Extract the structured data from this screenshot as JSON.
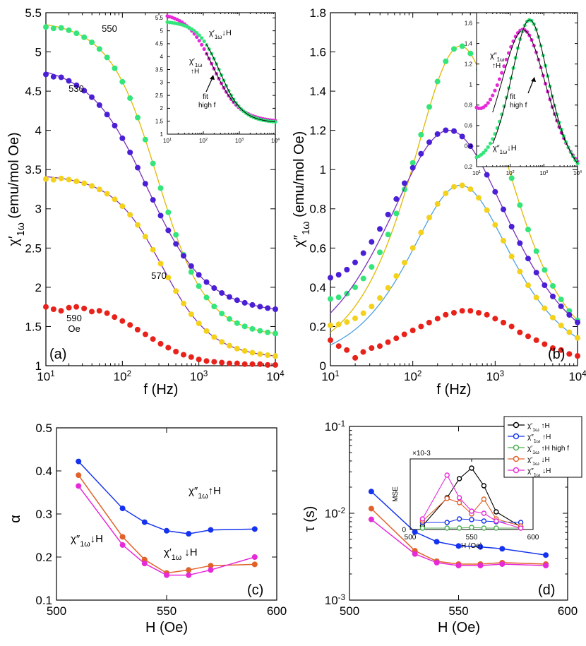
{
  "colors": {
    "green": "#33e57a",
    "purple": "#4a1fd6",
    "yellow": "#f4d21c",
    "red": "#e8221a",
    "magenta": "#e62ad8",
    "blue": "#1533ee",
    "orange": "#e0622a",
    "black": "#000000",
    "fit_yellow": "#e0b800",
    "fit_purple": "#7a2fb8",
    "fit_blue": "#4fa0e0",
    "fit_green": "#4caf50"
  },
  "chart_data": [
    {
      "id": "a",
      "type": "scatter",
      "panel_label": "(a)",
      "xscale": "log",
      "xlim": [
        10,
        10000
      ],
      "ylim": [
        1,
        5.5
      ],
      "xlabel": "f (Hz)",
      "ylabel": "χ′1ω (emu/mol Oe)",
      "xticks": [
        "10^1",
        "10^2",
        "10^3",
        "10^4"
      ],
      "yticks": [
        "1",
        "1.5",
        "2",
        "2.5",
        "3",
        "3.5",
        "4",
        "4.5",
        "5",
        "5.5"
      ],
      "annotations": [
        "550",
        "530",
        "570",
        "590",
        "Oe"
      ],
      "series": [
        {
          "name": "550",
          "color": "green",
          "model": {
            "chi0": 5.42,
            "chis": 1.35,
            "tau": 0.00055,
            "alpha": 0.16
          },
          "fit_color": "fit_yellow"
        },
        {
          "name": "530",
          "color": "purple",
          "model": {
            "chi0": 4.88,
            "chis": 1.65,
            "tau": 0.00075,
            "alpha": 0.24
          },
          "fit_color": "fit_purple"
        },
        {
          "name": "570",
          "color": "yellow",
          "model": {
            "chi0": 3.45,
            "chis": 1.08,
            "tau": 0.00048,
            "alpha": 0.17
          },
          "fit_color": "fit_purple"
        },
        {
          "name": "590",
          "color": "red",
          "points_x": [
            10,
            12.6,
            15.8,
            20,
            25,
            31.6,
            39.8,
            50,
            63,
            79,
            100,
            126,
            158,
            200,
            251,
            316,
            398,
            501,
            631,
            794,
            1000,
            1259,
            1585,
            1995,
            2512,
            3162,
            3981,
            5012,
            6310,
            7943,
            10000
          ],
          "points_y": [
            1.75,
            1.72,
            1.7,
            1.74,
            1.75,
            1.73,
            1.69,
            1.7,
            1.67,
            1.62,
            1.57,
            1.52,
            1.46,
            1.4,
            1.34,
            1.28,
            1.23,
            1.18,
            1.14,
            1.11,
            1.08,
            1.06,
            1.05,
            1.04,
            1.03,
            1.03,
            1.02,
            1.02,
            1.02,
            1.01,
            1.01
          ]
        }
      ],
      "inset": {
        "xscale": "log",
        "xlim": [
          10,
          10000
        ],
        "ylim": [
          1,
          5.7
        ],
        "xticks": [
          "10^1",
          "10^2",
          "10^3",
          "10^4"
        ],
        "yticks": [
          "1",
          "1.5",
          "2",
          "2.5",
          "3",
          "3.5",
          "4",
          "4.5",
          "5",
          "5.5"
        ],
        "annotations": [
          "χ′1ω↓H",
          "χ′1ω",
          "↑H",
          "fit",
          "high f"
        ],
        "series": [
          {
            "name": "χ′1ω↑H",
            "color": "magenta",
            "model": {
              "chi0": 5.75,
              "chis": 1.45,
              "tau": 0.00085,
              "alpha": 0.22
            }
          },
          {
            "name": "χ′1ω↓H",
            "color": "green",
            "model": {
              "chi0": 5.4,
              "chis": 1.42,
              "tau": 0.00055,
              "alpha": 0.15
            }
          }
        ]
      }
    },
    {
      "id": "b",
      "type": "scatter",
      "panel_label": "(b)",
      "xscale": "log",
      "xlim": [
        10,
        10000
      ],
      "ylim": [
        0,
        1.8
      ],
      "xlabel": "f (Hz)",
      "ylabel": "χ″1ω (emu/mol Oe)",
      "xticks": [
        "10^1",
        "10^2",
        "10^3",
        "10^4"
      ],
      "yticks": [
        "0",
        "0.2",
        "0.4",
        "0.6",
        "0.8",
        "1",
        "1.2",
        "1.4",
        "1.6",
        "1.8"
      ],
      "series": [
        {
          "name": "550",
          "color": "green",
          "model": {
            "amp": 1.63,
            "tau": 0.00042,
            "alpha": 0.14
          },
          "low_f_bump": 0.17,
          "fit_color": "fit_yellow"
        },
        {
          "name": "530",
          "color": "purple",
          "model": {
            "amp": 1.2,
            "tau": 0.00058,
            "alpha": 0.26
          },
          "low_f_bump": 0.18,
          "fit_color": "fit_purple"
        },
        {
          "name": "570",
          "color": "yellow",
          "model": {
            "amp": 0.92,
            "tau": 0.00042,
            "alpha": 0.16
          },
          "low_f_bump": 0.1,
          "fit_color": "fit_blue"
        },
        {
          "name": "590",
          "color": "red",
          "points_x": [
            10,
            12.6,
            15.8,
            20,
            25,
            31.6,
            39.8,
            50,
            63,
            79,
            100,
            126,
            158,
            200,
            251,
            316,
            398,
            501,
            631,
            794,
            1000,
            1259,
            1585,
            1995,
            2512,
            3162,
            3981,
            5012,
            6310,
            7943,
            10000
          ],
          "points_y": [
            0.13,
            0.1,
            0.08,
            0.04,
            0.07,
            0.09,
            0.1,
            0.12,
            0.14,
            0.16,
            0.18,
            0.2,
            0.22,
            0.24,
            0.26,
            0.27,
            0.28,
            0.28,
            0.27,
            0.26,
            0.24,
            0.22,
            0.2,
            0.17,
            0.15,
            0.13,
            0.11,
            0.09,
            0.08,
            0.06,
            0.05
          ]
        }
      ],
      "inset": {
        "xscale": "log",
        "xlim": [
          10,
          10000
        ],
        "ylim": [
          0.2,
          1.7
        ],
        "xticks": [
          "10^1",
          "10^2",
          "10^3",
          "10^4"
        ],
        "yticks": [
          "0.2",
          "0.4",
          "0.6",
          "0.8",
          "1",
          "1.2",
          "1.4",
          "1.6"
        ],
        "annotations": [
          "χ″1ω",
          "↑H",
          "fit",
          "high f",
          "χ″1ω↓H"
        ],
        "series": [
          {
            "name": "χ″1ω↑H",
            "color": "magenta",
            "model": {
              "amp": 1.53,
              "tau": 0.00065,
              "alpha": 0.25
            },
            "low_f_bump": 0.42
          },
          {
            "name": "χ″1ω↓H",
            "color": "green",
            "model": {
              "amp": 1.63,
              "tau": 0.00042,
              "alpha": 0.14
            },
            "low_f_bump": 0.12
          }
        ]
      }
    },
    {
      "id": "c",
      "type": "line",
      "panel_label": "(c)",
      "xlim": [
        500,
        600
      ],
      "ylim": [
        0.1,
        0.5
      ],
      "xlabel": "H (Oe)",
      "ylabel": "α",
      "xticks": [
        "500",
        "550",
        "600"
      ],
      "yticks": [
        "0.1",
        "0.2",
        "0.3",
        "0.4",
        "0.5"
      ],
      "annotations": [
        "χ″1ω↑H",
        "χ″1ω↓H",
        "χ′1ω ↓H"
      ],
      "x": [
        510,
        530,
        540,
        550,
        560,
        570,
        590
      ],
      "series": [
        {
          "name": "χ″1ω↑H",
          "color": "blue",
          "values": [
            0.422,
            0.313,
            0.281,
            0.261,
            0.254,
            0.263,
            0.265
          ]
        },
        {
          "name": "χ′1ω↓H",
          "color": "orange",
          "values": [
            0.39,
            0.247,
            0.194,
            0.163,
            0.17,
            0.18,
            0.183
          ]
        },
        {
          "name": "χ″1ω↓H",
          "color": "magenta",
          "values": [
            0.365,
            0.228,
            0.185,
            0.158,
            0.158,
            0.17,
            0.2
          ]
        }
      ]
    },
    {
      "id": "d",
      "type": "line",
      "panel_label": "(d)",
      "yscale": "log",
      "xlim": [
        500,
        600
      ],
      "ylim": [
        0.001,
        0.1
      ],
      "xlabel": "H (Oe)",
      "ylabel": "τ (s)",
      "xticks": [
        "500",
        "550",
        "600"
      ],
      "yticks": [
        "10^-3",
        "10^-2",
        "10^-1"
      ],
      "x": [
        510,
        530,
        540,
        550,
        560,
        570,
        590
      ],
      "series": [
        {
          "name": "χ″1ω↑H",
          "color": "blue",
          "values": [
            0.0178,
            0.0061,
            0.0047,
            0.0042,
            0.0041,
            0.0039,
            0.0033
          ]
        },
        {
          "name": "χ′1ω↓H",
          "color": "orange",
          "values": [
            0.0113,
            0.0037,
            0.0028,
            0.0026,
            0.0026,
            0.0027,
            0.0026
          ]
        },
        {
          "name": "χ″1ω↓H",
          "color": "magenta",
          "values": [
            0.0085,
            0.0034,
            0.0027,
            0.0025,
            0.0025,
            0.0026,
            0.0025
          ]
        }
      ],
      "inset": {
        "xlim": [
          500,
          600
        ],
        "ylim": [
          0,
          0.001
        ],
        "xlabel": "H (Oe)",
        "ylabel": "MSE",
        "multiplier": "×10-3",
        "xticks": [
          "500",
          "550",
          "600"
        ],
        "yticks": [
          "0",
          "0.5",
          "1"
        ],
        "x": [
          510,
          530,
          540,
          550,
          560,
          570,
          590
        ],
        "legend": [
          "χ′1ω ↑H",
          "χ″1ω ↑H",
          "χ′1ω ↑H high f",
          "χ′1ω ↓H",
          "χ″1ω ↓H"
        ],
        "series": [
          {
            "name": "χ′1ω ↑H",
            "color": "black",
            "values": [
              5e-05,
              0.00045,
              0.00072,
              0.00087,
              0.00062,
              0.00025,
              4e-05
            ]
          },
          {
            "name": "χ″1ω ↑H",
            "color": "blue",
            "values": [
              0.0001,
              0.0001,
              0.00015,
              0.00014,
              0.00012,
              0.00011,
              0.0001
            ]
          },
          {
            "name": "χ′1ω ↑H high f",
            "color": "fit_green",
            "values": [
              2e-05,
              2e-05,
              2e-05,
              3e-05,
              2e-05,
              2e-05,
              2e-05
            ]
          },
          {
            "name": "χ′1ω ↓H",
            "color": "orange",
            "values": [
              0.00012,
              0.00044,
              0.00038,
              0.00022,
              0.00043,
              0.00015,
              5e-05
            ]
          },
          {
            "name": "χ″1ω ↓H",
            "color": "magenta",
            "values": [
              0.00015,
              0.00077,
              0.00045,
              0.00026,
              0.00023,
              0.00012,
              2e-05
            ]
          }
        ]
      }
    }
  ]
}
